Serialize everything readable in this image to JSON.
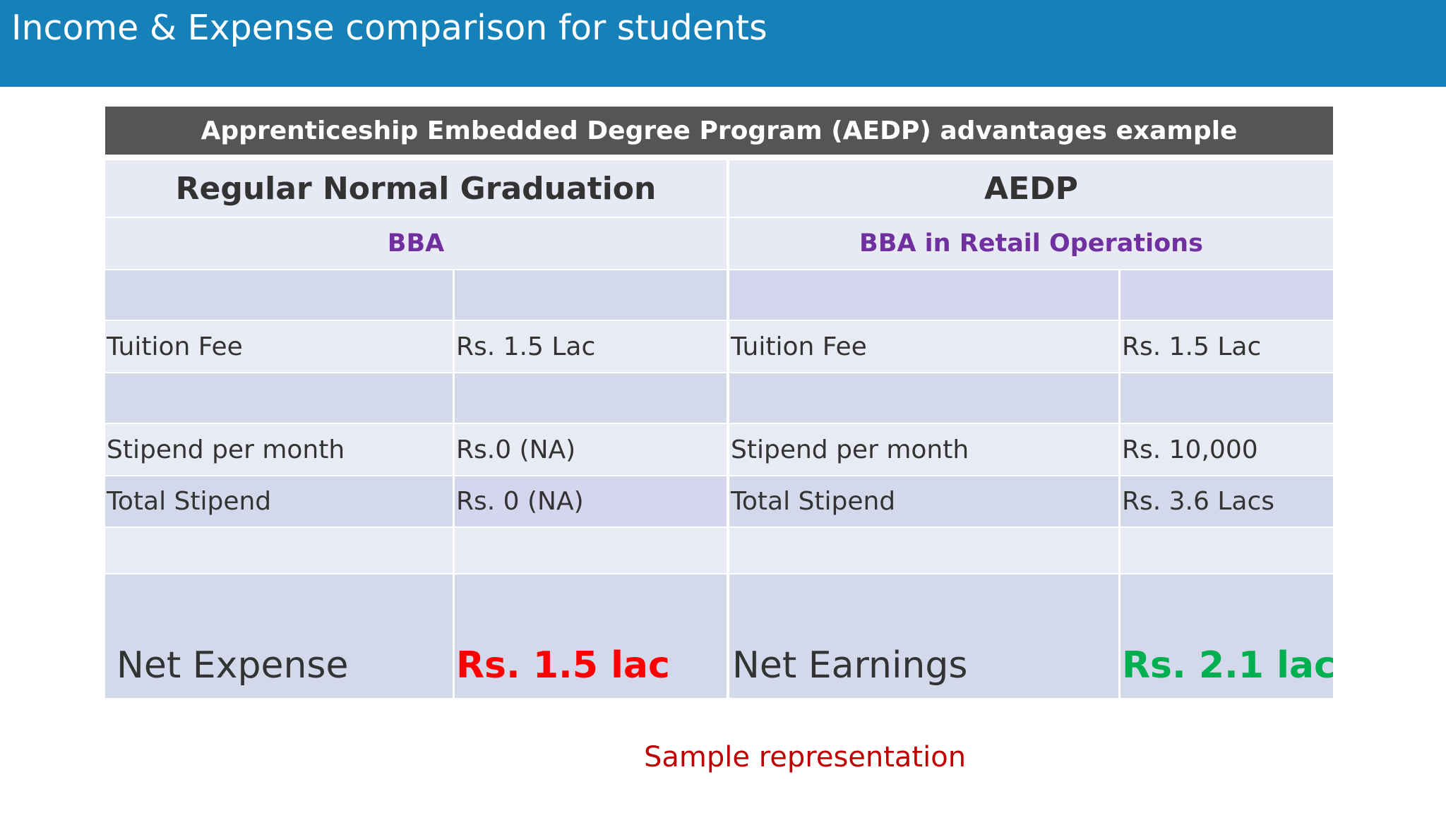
{
  "slide": {
    "title": "Income & Expense comparison for students",
    "footer": "Sample representation"
  },
  "table": {
    "banner": "Apprenticeship Embedded Degree Program (AEDP) advantages example",
    "left": {
      "heading": "Regular Normal Graduation",
      "program": "BBA",
      "tuition_label": "Tuition Fee",
      "tuition_value": "Rs. 1.5 Lac",
      "stipend_label": "Stipend per month",
      "stipend_value": "Rs.0 (NA)",
      "total_label": "Total Stipend",
      "total_value": "Rs. 0 (NA)",
      "net_label": "Net Expense",
      "net_value": "Rs. 1.5 lac"
    },
    "right": {
      "heading": "AEDP",
      "program": "BBA in Retail Operations",
      "tuition_label": "Tuition Fee",
      "tuition_value": "Rs. 1.5 Lac",
      "stipend_label": "Stipend per month",
      "stipend_value": "Rs. 10,000",
      "total_label": "Total Stipend",
      "total_value": "Rs. 3.6 Lacs",
      "net_label": "Net Earnings",
      "net_value": "Rs. 2.1 lac"
    }
  },
  "colors": {
    "title_bar": "#1581b8",
    "banner": "#555555",
    "program_text": "#7030a0",
    "net_expense": "#ff0000",
    "net_earnings": "#00b050",
    "footer_text": "#c00000"
  }
}
